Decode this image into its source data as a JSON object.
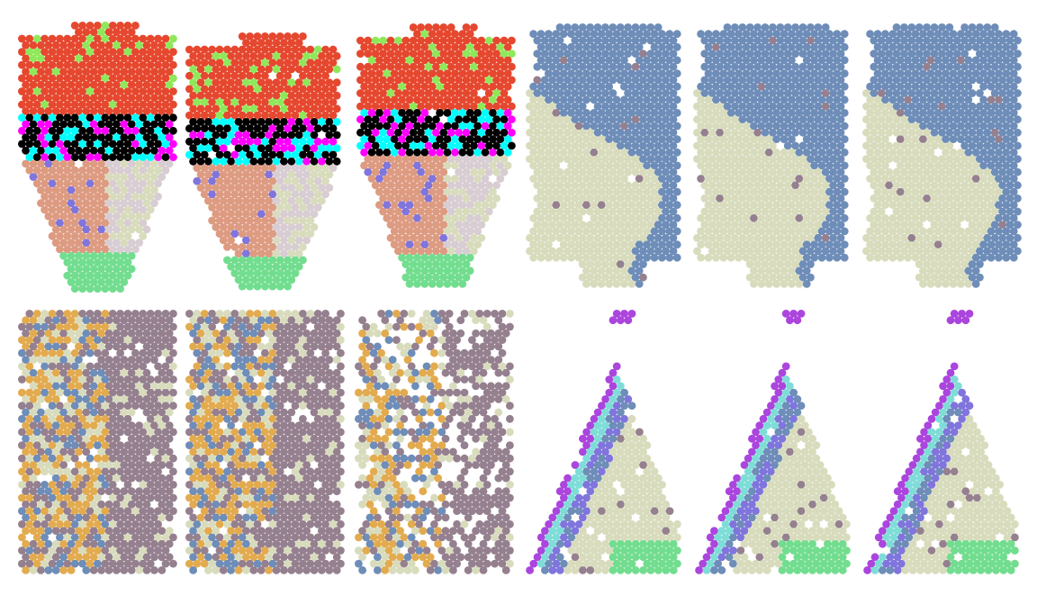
{
  "figure": {
    "rows": 2,
    "columns": 6,
    "palette": {
      "red": "#e5482f",
      "lime": "#8fe85a",
      "periwinkle": "#8075dc",
      "cyan": "#7fddd8",
      "magenta": "#ab45dd",
      "salmon": "#dd9b82",
      "sage": "#d8dcbd",
      "lavender_grey": "#d8cdd3",
      "mint": "#72dd8f",
      "steel_blue": "#6e8db8",
      "mauve": "#95808f",
      "amber": "#e3ab4f",
      "orange": "#f08a3c"
    },
    "panels": [
      {
        "row": 1,
        "column": 1,
        "sample_group": "A",
        "dominant_colors": [
          "red",
          "lime",
          "periwinkle",
          "cyan",
          "magenta",
          "salmon",
          "sage",
          "lavender_grey",
          "mint"
        ]
      },
      {
        "row": 1,
        "column": 2,
        "sample_group": "A",
        "dominant_colors": [
          "red",
          "lime",
          "periwinkle",
          "cyan",
          "magenta",
          "salmon",
          "sage",
          "lavender_grey",
          "mint"
        ]
      },
      {
        "row": 1,
        "column": 3,
        "sample_group": "A",
        "dominant_colors": [
          "red",
          "lime",
          "periwinkle",
          "cyan",
          "magenta",
          "salmon",
          "sage",
          "lavender_grey",
          "mint"
        ]
      },
      {
        "row": 1,
        "column": 4,
        "sample_group": "B",
        "dominant_colors": [
          "steel_blue",
          "sage",
          "mauve",
          "cyan",
          "magenta"
        ]
      },
      {
        "row": 1,
        "column": 5,
        "sample_group": "B",
        "dominant_colors": [
          "steel_blue",
          "sage",
          "cyan",
          "magenta"
        ]
      },
      {
        "row": 1,
        "column": 6,
        "sample_group": "B",
        "dominant_colors": [
          "steel_blue",
          "sage",
          "mauve",
          "cyan",
          "magenta",
          "orange"
        ]
      },
      {
        "row": 2,
        "column": 1,
        "sample_group": "C",
        "dominant_colors": [
          "mauve",
          "amber",
          "steel_blue",
          "sage",
          "magenta"
        ]
      },
      {
        "row": 2,
        "column": 2,
        "sample_group": "C",
        "dominant_colors": [
          "mauve",
          "amber",
          "steel_blue",
          "sage"
        ]
      },
      {
        "row": 2,
        "column": 3,
        "sample_group": "C",
        "dominant_colors": [
          "mauve",
          "amber",
          "steel_blue",
          "sage"
        ]
      },
      {
        "row": 2,
        "column": 4,
        "sample_group": "D",
        "dominant_colors": [
          "sage",
          "magenta",
          "cyan",
          "steel_blue",
          "periwinkle",
          "mauve",
          "mint",
          "lavender_grey"
        ]
      },
      {
        "row": 2,
        "column": 5,
        "sample_group": "D",
        "dominant_colors": [
          "sage",
          "magenta",
          "cyan",
          "steel_blue",
          "periwinkle",
          "mauve",
          "mint",
          "lavender_grey"
        ]
      },
      {
        "row": 2,
        "column": 6,
        "sample_group": "D",
        "dominant_colors": [
          "sage",
          "magenta",
          "cyan",
          "steel_blue",
          "periwinkle",
          "mint"
        ]
      }
    ]
  }
}
